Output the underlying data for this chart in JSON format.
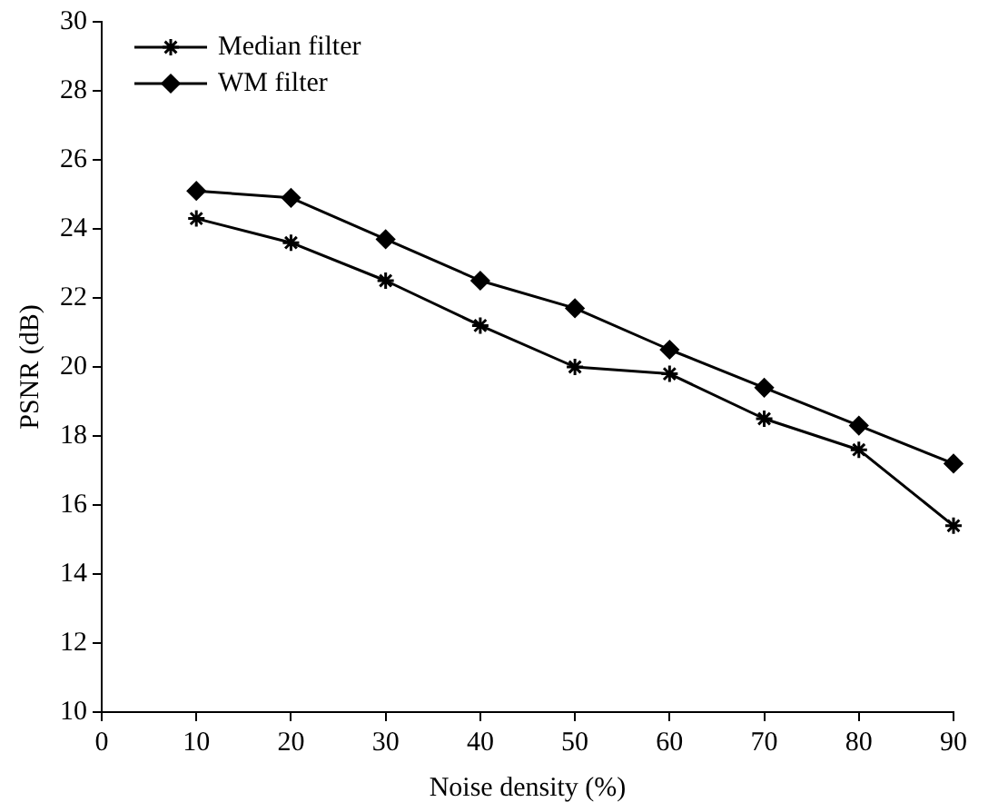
{
  "chart_data": {
    "type": "line",
    "xlabel": "Noise density (%)",
    "ylabel": "PSNR (dB)",
    "x": [
      10,
      20,
      30,
      40,
      50,
      60,
      70,
      80,
      90
    ],
    "series": [
      {
        "name": "Median filter",
        "color": "#000000",
        "marker": "cross",
        "values": [
          24.3,
          23.6,
          22.5,
          21.2,
          20.0,
          19.8,
          18.5,
          17.6,
          15.4
        ]
      },
      {
        "name": "WM filter",
        "color": "#000000",
        "marker": "diamond",
        "values": [
          25.1,
          24.9,
          23.7,
          22.5,
          21.7,
          20.5,
          19.4,
          18.3,
          17.2
        ]
      }
    ],
    "xlim": [
      0,
      90
    ],
    "xticks": [
      0,
      10,
      20,
      30,
      40,
      50,
      60,
      70,
      80,
      90
    ],
    "ylim": [
      10,
      30
    ],
    "yticks": [
      10,
      12,
      14,
      16,
      18,
      20,
      22,
      24,
      26,
      28,
      30
    ],
    "grid": false,
    "legend": "top left",
    "line_style": "solid"
  }
}
